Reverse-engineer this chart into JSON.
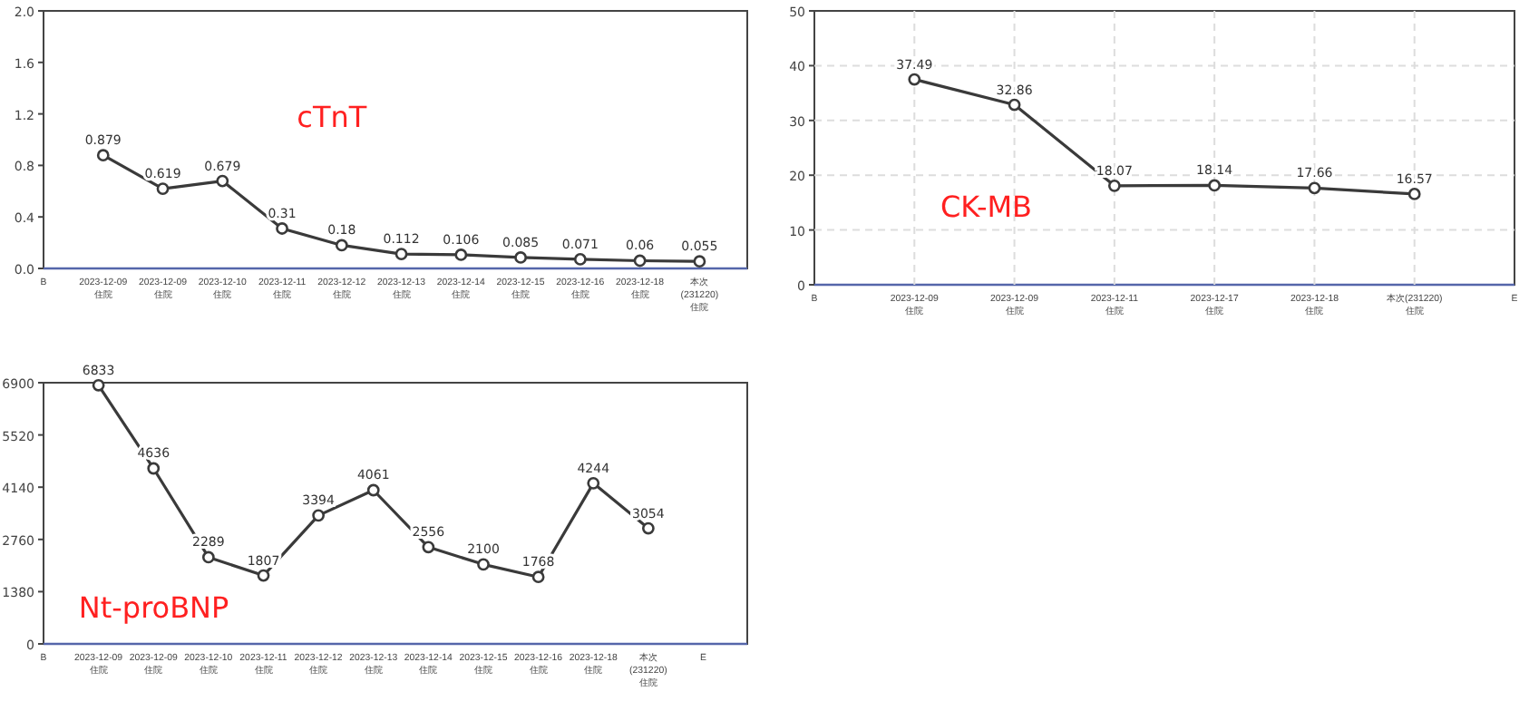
{
  "chart_data": [
    {
      "type": "line",
      "categories": [
        "B",
        "2023-12-09\n住院",
        "2023-12-09\n住院",
        "2023-12-10\n住院",
        "2023-12-11\n住院",
        "2023-12-12\n住院",
        "2023-12-13\n住院",
        "2023-12-14\n住院",
        "2023-12-15\n住院",
        "2023-12-16\n住院",
        "2023-12-18\n住院",
        "本次\n(231220)\n住院"
      ],
      "values": [
        null,
        0.879,
        0.619,
        0.679,
        0.31,
        0.18,
        0.112,
        0.106,
        0.085,
        0.071,
        0.06,
        0.055
      ],
      "color": "#3a3a3a",
      "ylim": [
        0,
        2.0
      ],
      "yticks": [
        {
          "value": 0,
          "label": "0.0"
        },
        0.4,
        0.8,
        1.2,
        1.6,
        {
          "value": 2,
          "label": "2.0"
        }
      ],
      "data_labels": true,
      "marker": "circle",
      "grid": false,
      "annotations": [
        "cTnT"
      ]
    },
    {
      "type": "line",
      "categories": [
        "B",
        "2023-12-09\n住院",
        "2023-12-09\n住院",
        "2023-12-11\n住院",
        "2023-12-17\n住院",
        "2023-12-18\n住院",
        "本次(231220)\n住院",
        "E"
      ],
      "values": [
        null,
        37.49,
        32.86,
        18.07,
        18.14,
        17.66,
        16.57,
        null
      ],
      "color": "#3a3a3a",
      "ylim": [
        0,
        50
      ],
      "yticks": [
        0,
        10,
        20,
        30,
        40,
        50
      ],
      "data_labels": true,
      "marker": "circle",
      "grid": true,
      "annotations": [
        "CK-MB"
      ]
    },
    {
      "type": "line",
      "categories": [
        "B",
        "2023-12-09\n住院",
        "2023-12-09\n住院",
        "2023-12-10\n住院",
        "2023-12-11\n住院",
        "2023-12-12\n住院",
        "2023-12-13\n住院",
        "2023-12-14\n住院",
        "2023-12-15\n住院",
        "2023-12-16\n住院",
        "2023-12-18\n住院",
        "本次\n(231220)\n住院",
        "E"
      ],
      "values": [
        null,
        6833,
        4636,
        2289,
        1807,
        3394,
        4061,
        2556,
        2100,
        1768,
        4244,
        3054,
        null
      ],
      "color": "#3a3a3a",
      "ylim": [
        0,
        6900
      ],
      "yticks": [
        0,
        1380,
        2760,
        4140,
        5520,
        6900
      ],
      "data_labels": true,
      "marker": "circle",
      "grid": false,
      "annotations": [
        "Nt-proBNP"
      ]
    }
  ]
}
